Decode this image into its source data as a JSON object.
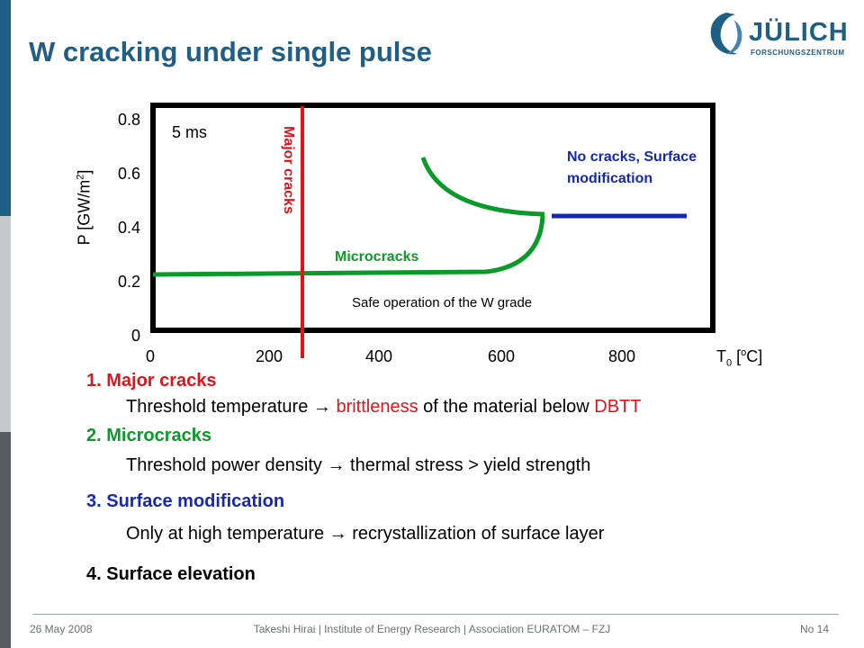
{
  "slide": {
    "title": "W cracking under single pulse",
    "logo": {
      "name": "JÜLICH",
      "sub": "FORSCHUNGSZENTRUM"
    }
  },
  "chart": {
    "y_label_prefix": "P [GW/m",
    "y_label_sup": "2",
    "y_label_suffix": "]",
    "x_label_prefix": "T",
    "x_label_sub": "0",
    "x_label_mid": " [",
    "x_label_sup": "o",
    "x_label_suffix": "C]",
    "y_ticks": [
      "0",
      "0.2",
      "0.4",
      "0.6",
      "0.8"
    ],
    "x_ticks": [
      "0",
      "200",
      "400",
      "600",
      "800"
    ],
    "pulse": "5 ms",
    "major_label": "Major cracks",
    "micro_label": "Microcracks",
    "nocracks_label": "No cracks, Surface modification",
    "safe_label": "Safe operation of the W grade",
    "colors": {
      "major": "#e2141b",
      "micro": "#0a9a2a",
      "surface": "#1428b4",
      "frame": "#000000"
    }
  },
  "list": [
    {
      "title": "1. Major cracks",
      "desc_a": "Threshold temperature ",
      "arrow": "→",
      "desc_b": " ",
      "desc_red1": "brittleness",
      "desc_c": " of the material below ",
      "desc_red2": "DBTT"
    },
    {
      "title": "2. Microcracks",
      "desc_a": "Threshold power density ",
      "arrow": "→",
      "desc_b": " thermal stress > yield strength"
    },
    {
      "title": "3. Surface modification",
      "desc_a": "Only at high temperature ",
      "arrow": "→",
      "desc_b": " recrystallization of surface layer"
    },
    {
      "title": "4. Surface elevation"
    }
  ],
  "footer": {
    "date": "26 May 2008",
    "center": "Takeshi Hirai | Institute of Energy Research | Association EURATOM – FZJ",
    "page": "No 14"
  }
}
